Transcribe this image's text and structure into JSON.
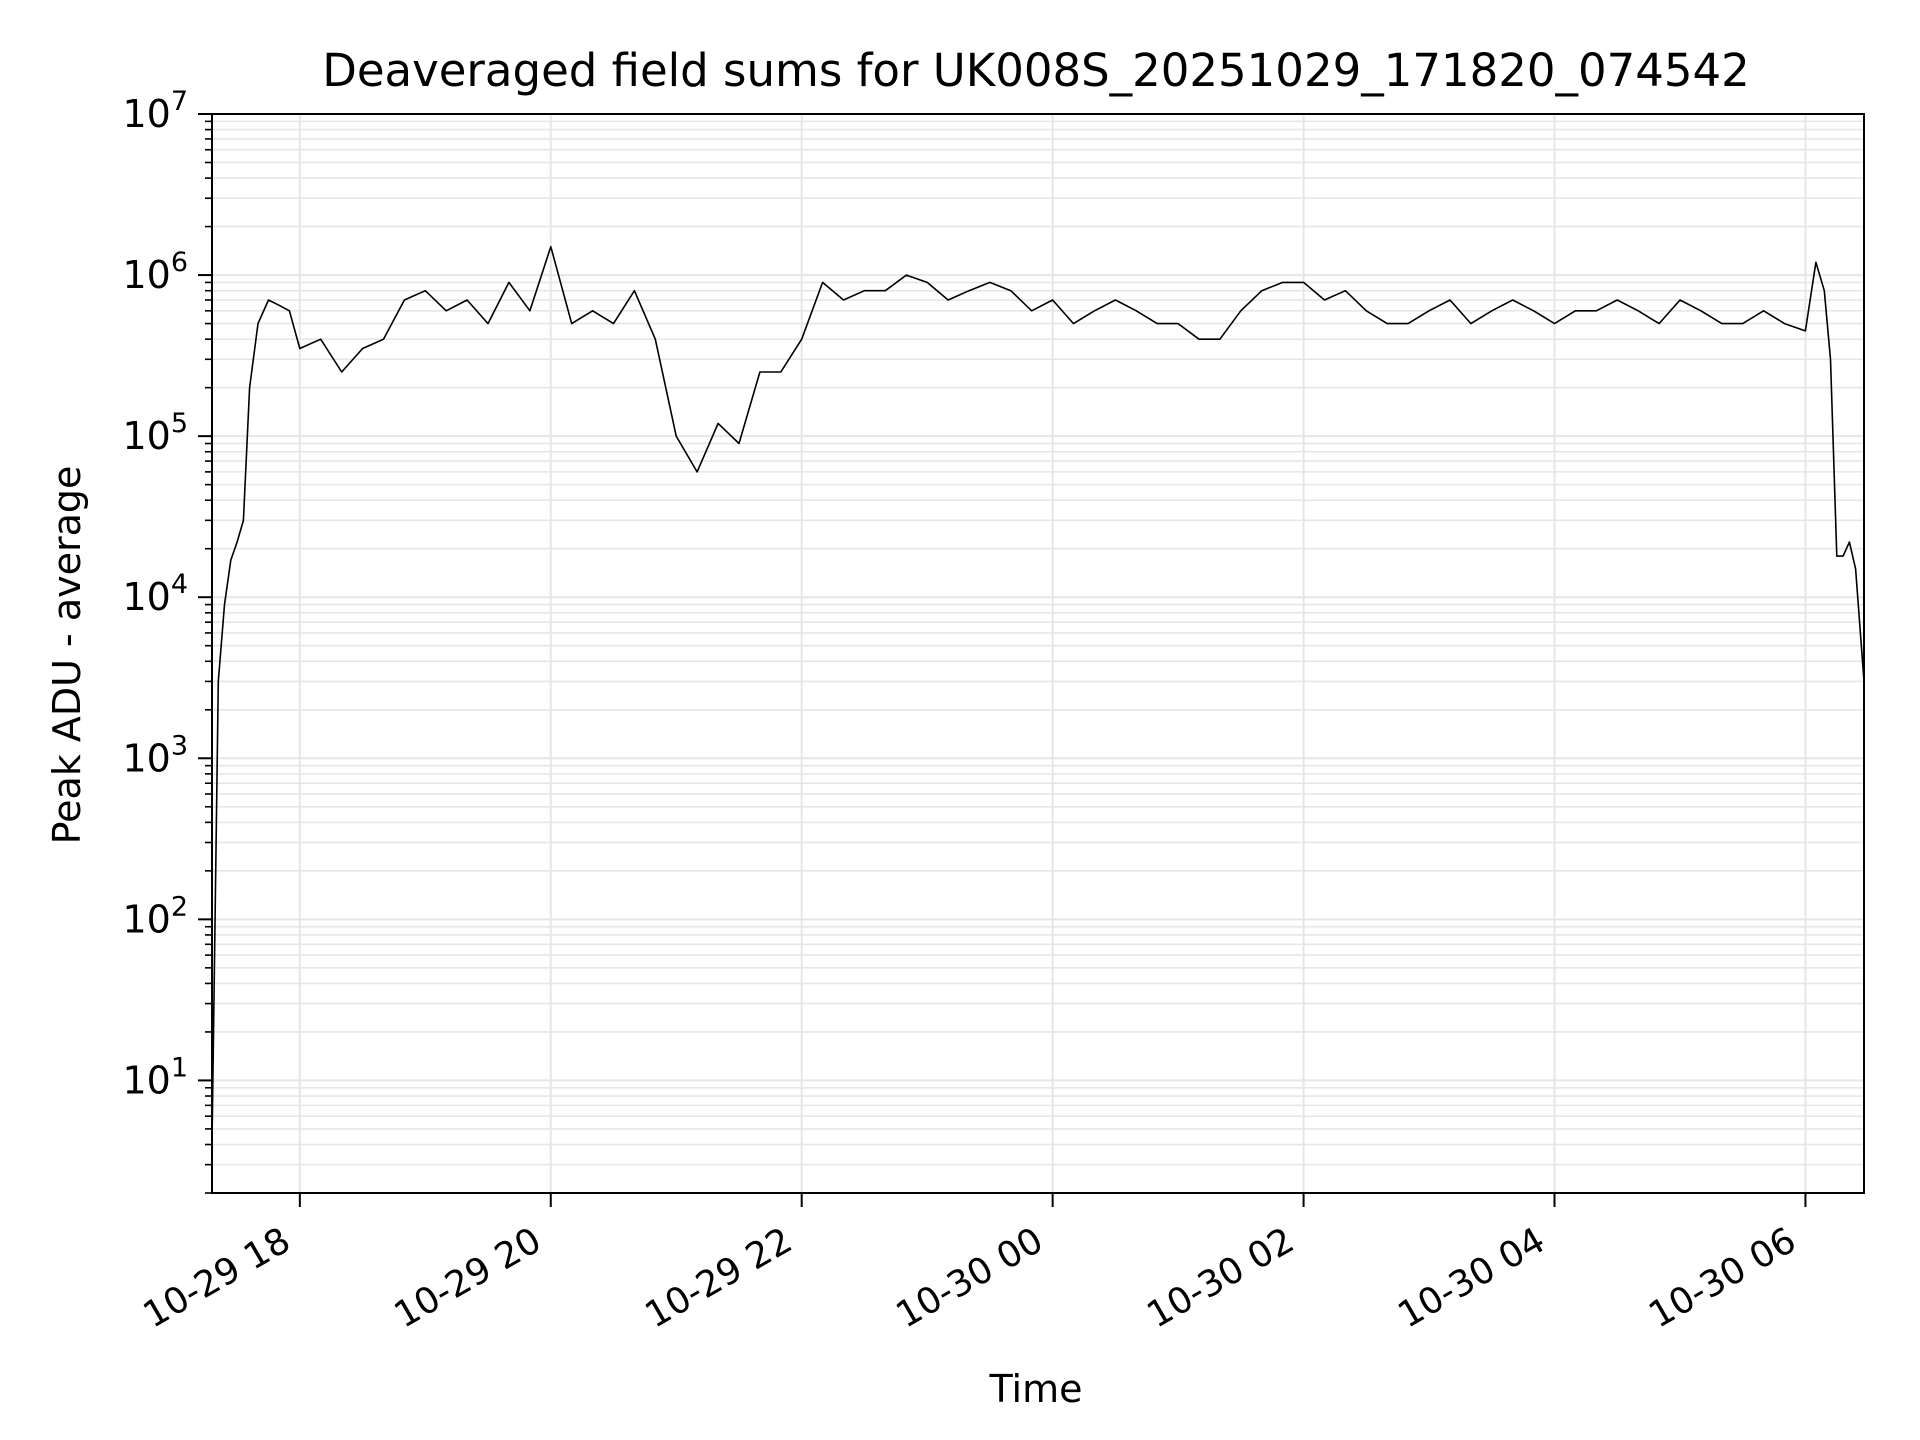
{
  "chart_data": {
    "type": "line",
    "title": "Deaveraged field sums for UK008S_20251029_171820_074542",
    "xlabel": "Time",
    "ylabel": "Peak ADU - average",
    "yscale": "log",
    "ylim": [
      2,
      10000000
    ],
    "xlim": [
      "2025-10-29 17:18",
      "2025-10-30 06:28"
    ],
    "grid": true,
    "line_color": "#000000",
    "grid_color": "#e6e6e6",
    "x_ticks": [
      {
        "t": "2025-10-29 18:00",
        "label": "10-29 18"
      },
      {
        "t": "2025-10-29 20:00",
        "label": "10-29 20"
      },
      {
        "t": "2025-10-29 22:00",
        "label": "10-29 22"
      },
      {
        "t": "2025-10-30 00:00",
        "label": "10-30 00"
      },
      {
        "t": "2025-10-30 02:00",
        "label": "10-30 02"
      },
      {
        "t": "2025-10-30 04:00",
        "label": "10-30 04"
      },
      {
        "t": "2025-10-30 06:00",
        "label": "10-30 06"
      }
    ],
    "y_ticks": [
      {
        "v": 10,
        "base": "10",
        "exp": "1"
      },
      {
        "v": 100,
        "base": "10",
        "exp": "2"
      },
      {
        "v": 1000,
        "base": "10",
        "exp": "3"
      },
      {
        "v": 10000,
        "base": "10",
        "exp": "4"
      },
      {
        "v": 100000,
        "base": "10",
        "exp": "5"
      },
      {
        "v": 1000000,
        "base": "10",
        "exp": "6"
      },
      {
        "v": 10000000,
        "base": "10",
        "exp": "7"
      }
    ],
    "series": [
      {
        "x": [
          "2025-10-29 17:18",
          "2025-10-29 17:21",
          "2025-10-29 17:24",
          "2025-10-29 17:27",
          "2025-10-29 17:30",
          "2025-10-29 17:33",
          "2025-10-29 17:36",
          "2025-10-29 17:40",
          "2025-10-29 17:45",
          "2025-10-29 17:50",
          "2025-10-29 17:55",
          "2025-10-29 18:00",
          "2025-10-29 18:10",
          "2025-10-29 18:20",
          "2025-10-29 18:30",
          "2025-10-29 18:40",
          "2025-10-29 18:50",
          "2025-10-29 19:00",
          "2025-10-29 19:10",
          "2025-10-29 19:20",
          "2025-10-29 19:30",
          "2025-10-29 19:40",
          "2025-10-29 19:50",
          "2025-10-29 20:00",
          "2025-10-29 20:10",
          "2025-10-29 20:20",
          "2025-10-29 20:30",
          "2025-10-29 20:40",
          "2025-10-29 20:50",
          "2025-10-29 21:00",
          "2025-10-29 21:10",
          "2025-10-29 21:20",
          "2025-10-29 21:30",
          "2025-10-29 21:40",
          "2025-10-29 21:50",
          "2025-10-29 22:00",
          "2025-10-29 22:10",
          "2025-10-29 22:20",
          "2025-10-29 22:30",
          "2025-10-29 22:40",
          "2025-10-29 22:50",
          "2025-10-29 23:00",
          "2025-10-29 23:10",
          "2025-10-29 23:20",
          "2025-10-29 23:30",
          "2025-10-29 23:40",
          "2025-10-29 23:50",
          "2025-10-30 00:00",
          "2025-10-30 00:10",
          "2025-10-30 00:20",
          "2025-10-30 00:30",
          "2025-10-30 00:40",
          "2025-10-30 00:50",
          "2025-10-30 01:00",
          "2025-10-30 01:10",
          "2025-10-30 01:20",
          "2025-10-30 01:30",
          "2025-10-30 01:40",
          "2025-10-30 01:50",
          "2025-10-30 02:00",
          "2025-10-30 02:10",
          "2025-10-30 02:20",
          "2025-10-30 02:30",
          "2025-10-30 02:40",
          "2025-10-30 02:50",
          "2025-10-30 03:00",
          "2025-10-30 03:10",
          "2025-10-30 03:20",
          "2025-10-30 03:30",
          "2025-10-30 03:40",
          "2025-10-30 03:50",
          "2025-10-30 04:00",
          "2025-10-30 04:10",
          "2025-10-30 04:20",
          "2025-10-30 04:30",
          "2025-10-30 04:40",
          "2025-10-30 04:50",
          "2025-10-30 05:00",
          "2025-10-30 05:10",
          "2025-10-30 05:20",
          "2025-10-30 05:30",
          "2025-10-30 05:40",
          "2025-10-30 05:50",
          "2025-10-30 06:00",
          "2025-10-30 06:05",
          "2025-10-30 06:09",
          "2025-10-30 06:12",
          "2025-10-30 06:15",
          "2025-10-30 06:18",
          "2025-10-30 06:21",
          "2025-10-30 06:24",
          "2025-10-30 06:28"
        ],
        "y": [
          4,
          3000,
          9000,
          17000,
          22000,
          30000,
          200000,
          500000,
          700000,
          650000,
          600000,
          350000,
          400000,
          250000,
          350000,
          400000,
          700000,
          800000,
          600000,
          700000,
          500000,
          900000,
          600000,
          1500000,
          500000,
          600000,
          500000,
          800000,
          400000,
          100000,
          60000,
          120000,
          90000,
          250000,
          250000,
          400000,
          900000,
          700000,
          800000,
          800000,
          1000000,
          900000,
          700000,
          800000,
          900000,
          800000,
          600000,
          700000,
          500000,
          600000,
          700000,
          600000,
          500000,
          500000,
          400000,
          400000,
          600000,
          800000,
          900000,
          900000,
          700000,
          800000,
          600000,
          500000,
          500000,
          600000,
          700000,
          500000,
          600000,
          700000,
          600000,
          500000,
          600000,
          600000,
          700000,
          600000,
          500000,
          700000,
          600000,
          500000,
          500000,
          600000,
          500000,
          450000,
          1200000,
          800000,
          300000,
          18000,
          18000,
          22000,
          15000,
          3000
        ]
      }
    ]
  }
}
